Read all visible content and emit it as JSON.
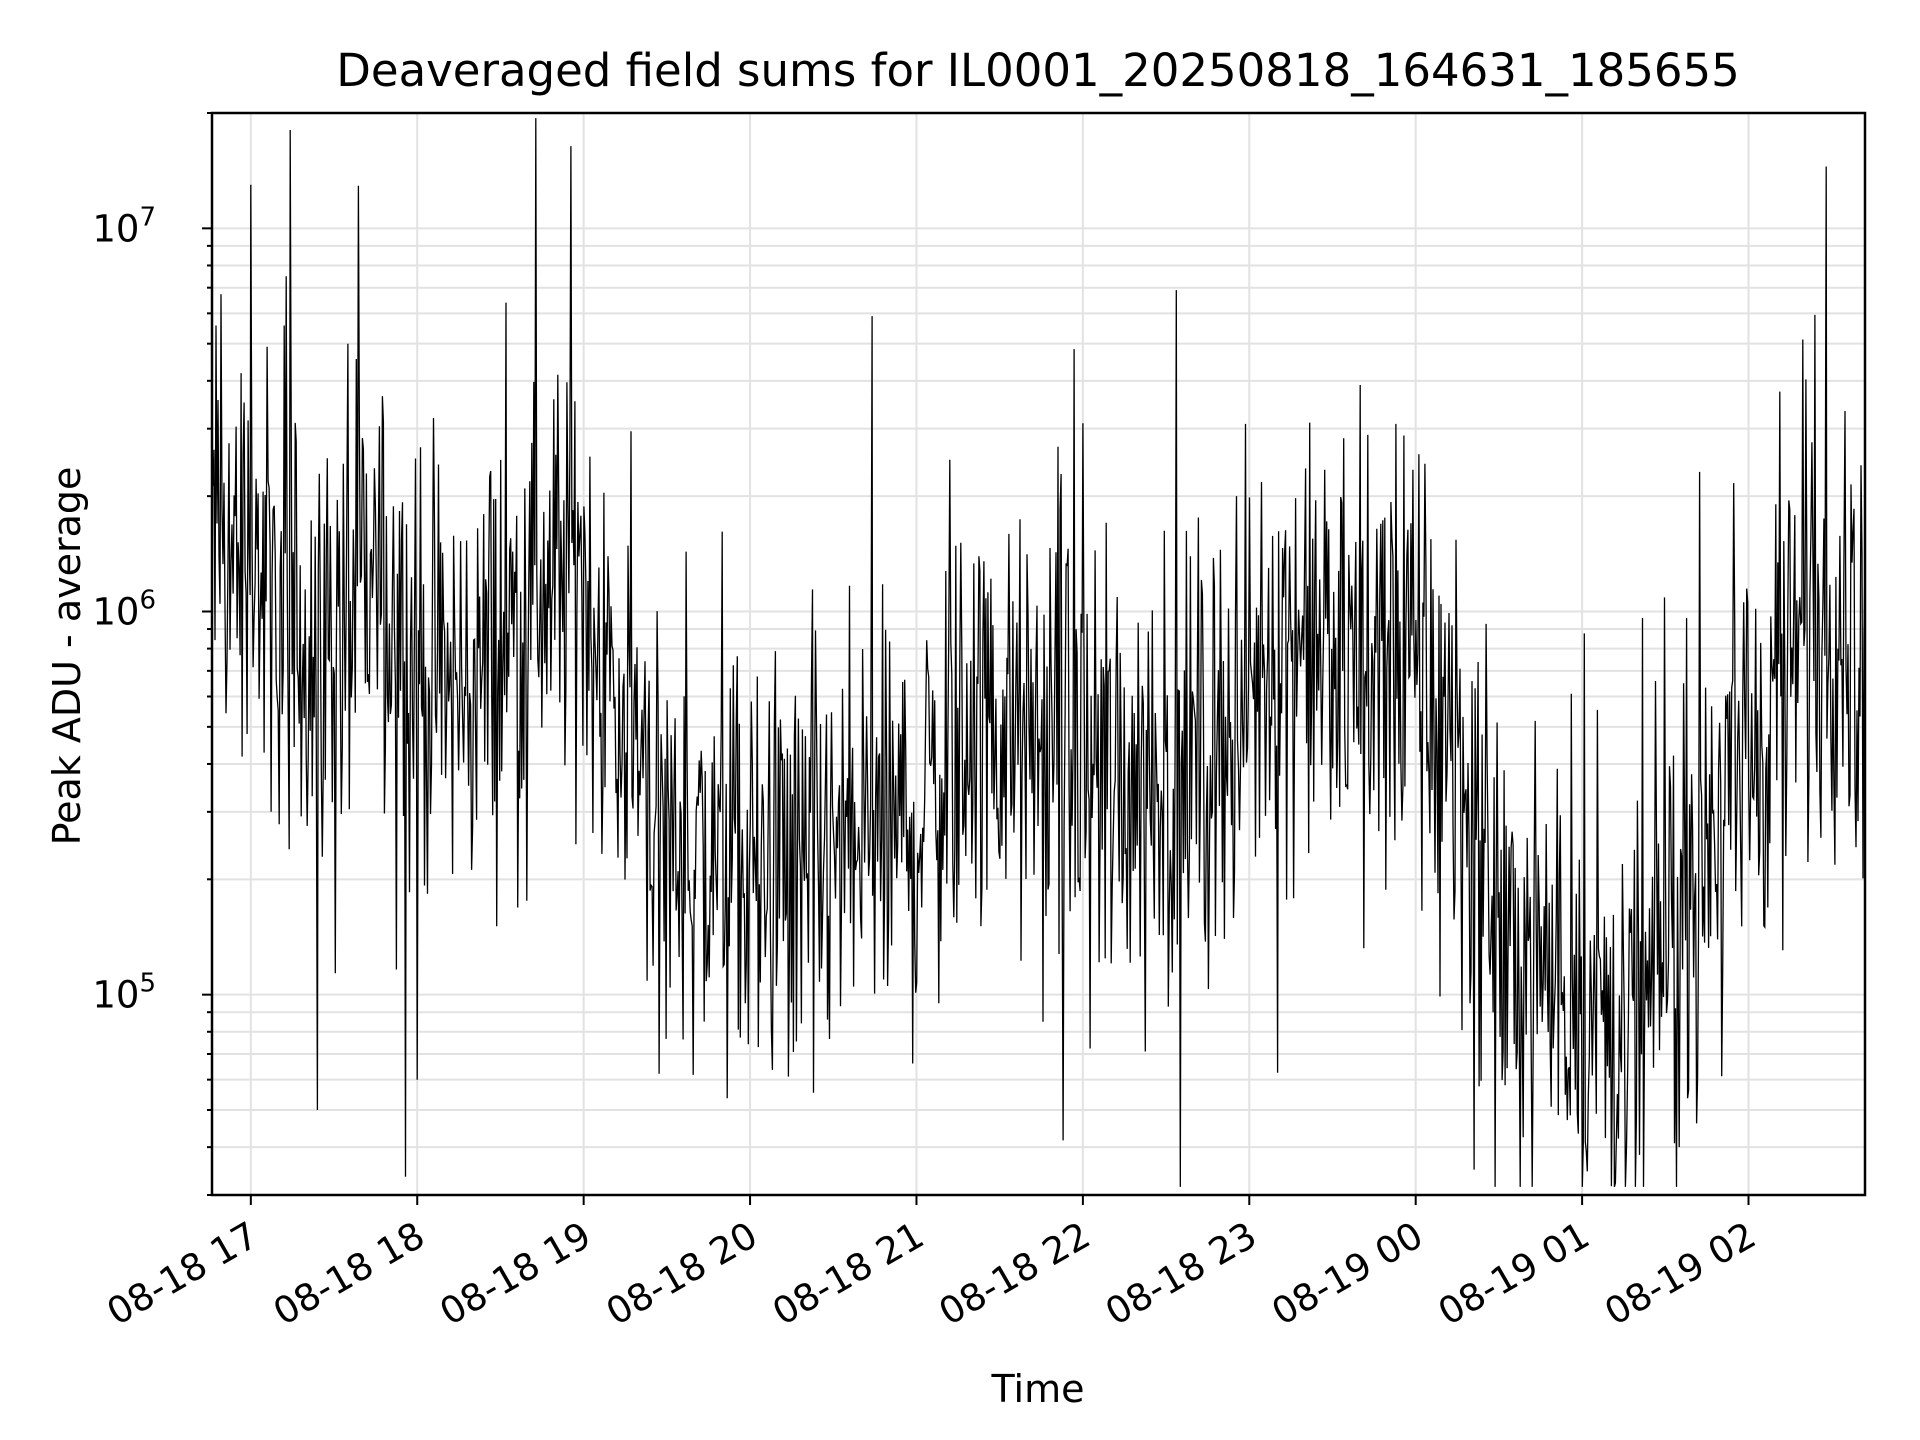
{
  "chart_data": {
    "type": "line",
    "title": "Deaveraged field sums for IL0001_20250818_164631_185655",
    "xlabel": "Time",
    "ylabel": "Peak ADU - average",
    "yscale": "log",
    "ylim": [
      30000,
      20000000
    ],
    "xlim": [
      "2025-08-18 16:46",
      "2025-08-19 02:42"
    ],
    "grid": true,
    "x_tick_labels": [
      "08-18 17",
      "08-18 18",
      "08-18 19",
      "08-18 20",
      "08-18 21",
      "08-18 22",
      "08-18 23",
      "08-19 00",
      "08-19 01",
      "08-19 02"
    ],
    "x_ticks": [
      "2025-08-18 17:00",
      "2025-08-18 18:00",
      "2025-08-18 19:00",
      "2025-08-18 20:00",
      "2025-08-18 21:00",
      "2025-08-18 22:00",
      "2025-08-18 23:00",
      "2025-08-19 00:00",
      "2025-08-19 01:00",
      "2025-08-19 02:00"
    ],
    "y_ticks": [
      {
        "value": 100000,
        "base": "10",
        "exp": "5"
      },
      {
        "value": 1000000,
        "base": "10",
        "exp": "6"
      },
      {
        "value": 10000000,
        "base": "10",
        "exp": "7"
      }
    ],
    "series": [
      {
        "color": "#000000",
        "note_level_profile": "approximate envelope of a dense noisy series",
        "x": [
          "2025-08-18 16:46",
          "2025-08-18 17:00",
          "2025-08-18 17:15",
          "2025-08-18 17:30",
          "2025-08-18 17:45",
          "2025-08-18 18:00",
          "2025-08-18 18:15",
          "2025-08-18 18:30",
          "2025-08-18 18:45",
          "2025-08-18 19:00",
          "2025-08-18 19:10",
          "2025-08-18 19:20",
          "2025-08-18 19:30",
          "2025-08-18 19:45",
          "2025-08-18 20:00",
          "2025-08-18 20:15",
          "2025-08-18 20:30",
          "2025-08-18 20:45",
          "2025-08-18 21:00",
          "2025-08-18 21:10",
          "2025-08-18 21:20",
          "2025-08-18 21:30",
          "2025-08-18 21:45",
          "2025-08-18 22:00",
          "2025-08-18 22:15",
          "2025-08-18 22:30",
          "2025-08-18 22:45",
          "2025-08-18 23:00",
          "2025-08-18 23:15",
          "2025-08-18 23:30",
          "2025-08-18 23:45",
          "2025-08-19 00:00",
          "2025-08-19 00:10",
          "2025-08-19 00:20",
          "2025-08-19 00:30",
          "2025-08-19 00:45",
          "2025-08-19 01:00",
          "2025-08-19 01:10",
          "2025-08-19 01:20",
          "2025-08-19 01:30",
          "2025-08-19 01:45",
          "2025-08-19 02:00",
          "2025-08-19 02:10",
          "2025-08-19 02:20",
          "2025-08-19 02:30",
          "2025-08-19 02:42"
        ],
        "y": [
          1600000,
          1300000,
          900000,
          800000,
          1200000,
          700000,
          600000,
          800000,
          1200000,
          1300000,
          600000,
          400000,
          250000,
          220000,
          200000,
          200000,
          220000,
          250000,
          280000,
          400000,
          500000,
          480000,
          420000,
          400000,
          380000,
          380000,
          420000,
          600000,
          900000,
          700000,
          800000,
          700000,
          500000,
          300000,
          150000,
          120000,
          100000,
          80000,
          70000,
          150000,
          300000,
          400000,
          600000,
          900000,
          1000000,
          1000000
        ],
        "spikes": [
          {
            "x": "2025-08-18 17:00",
            "y": 13000000
          },
          {
            "x": "2025-08-18 17:35",
            "y": 5000000
          },
          {
            "x": "2025-08-18 18:32",
            "y": 6400000
          },
          {
            "x": "2025-08-18 20:44",
            "y": 5900000
          },
          {
            "x": "2025-08-18 22:00",
            "y": 3100000
          },
          {
            "x": "2025-08-18 23:40",
            "y": 3900000
          },
          {
            "x": "2025-08-19 02:28",
            "y": 14500000
          },
          {
            "x": "2025-08-18 17:24",
            "y": 50000
          },
          {
            "x": "2025-08-18 18:00",
            "y": 60000
          },
          {
            "x": "2025-08-19 01:16",
            "y": 40000
          },
          {
            "x": "2025-08-19 01:35",
            "y": 40000
          }
        ]
      }
    ]
  }
}
